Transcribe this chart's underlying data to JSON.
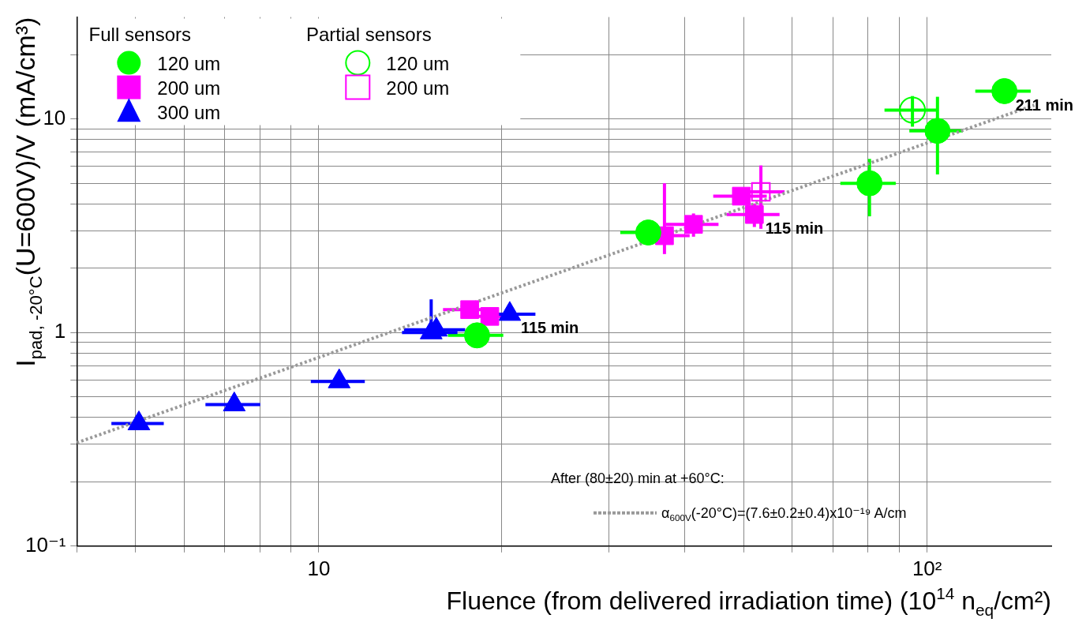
{
  "chart_data": {
    "type": "scatter",
    "xlabel": "Fluence (from delivered irradiation time) (10$^{14}$ n$_{eq}$/cm²)",
    "ylabel": "I$_{pad, -20°C}$(U=600V)/V (mA/cm³)",
    "legend_title": "After (80±20) min at +60°C:",
    "log": "xy",
    "grid": true,
    "legend": "left",
    "xlim": [
      4,
      160
    ],
    "ylim": [
      0.1,
      30
    ],
    "xticks": [
      {
        "value": 4,
        "label": null
      },
      {
        "value": 5,
        "label": null
      },
      {
        "value": 6,
        "label": null
      },
      {
        "value": 7,
        "label": null
      },
      {
        "value": 8,
        "label": null
      },
      {
        "value": 9,
        "label": null
      },
      {
        "value": 10,
        "label": "10"
      },
      {
        "value": 20,
        "label": null
      },
      {
        "value": 30,
        "label": null
      },
      {
        "value": 40,
        "label": null
      },
      {
        "value": 50,
        "label": null
      },
      {
        "value": 60,
        "label": null
      },
      {
        "value": 70,
        "label": null
      },
      {
        "value": 80,
        "label": null
      },
      {
        "value": 90,
        "label": null
      },
      {
        "value": 100,
        "label": "10²"
      }
    ],
    "yticks": [
      {
        "value": 0.1,
        "label": "10⁻¹"
      },
      {
        "value": 0.2,
        "label": null
      },
      {
        "value": 0.3,
        "label": null
      },
      {
        "value": 0.4,
        "label": null
      },
      {
        "value": 0.5,
        "label": null
      },
      {
        "value": 0.6,
        "label": null
      },
      {
        "value": 0.7,
        "label": null
      },
      {
        "value": 0.8,
        "label": null
      },
      {
        "value": 0.9,
        "label": null
      },
      {
        "value": 1,
        "label": "1"
      },
      {
        "value": 2,
        "label": null
      },
      {
        "value": 3,
        "label": null
      },
      {
        "value": 4,
        "label": null
      },
      {
        "value": 5,
        "label": null
      },
      {
        "value": 6,
        "label": null
      },
      {
        "value": 7,
        "label": null
      },
      {
        "value": 8,
        "label": null
      },
      {
        "value": 9,
        "label": null
      },
      {
        "value": 10,
        "label": "10"
      },
      {
        "value": 20,
        "label": null
      }
    ],
    "series": [
      {
        "name": "120 um",
        "color": "#00ff00",
        "marker": "circle",
        "x": [
          18.2,
          34.8,
          80.4,
          104,
          134
        ],
        "values": [
          0.97,
          2.94,
          5.0,
          8.8,
          13.5
        ],
        "xerrors": [
          1.9,
          3.5,
          8.4,
          10.5,
          14
        ],
        "errors": [
          0.12,
          null,
          1.5,
          [
            5.5,
            12.7
          ],
          null
        ]
      },
      {
        "name": "200 um",
        "color": "#ff00ff",
        "marker": "square",
        "x": [
          17.7,
          19.1,
          37.0,
          41.3,
          49.5,
          52.0
        ],
        "values": [
          1.28,
          1.19,
          2.84,
          3.21,
          4.35,
          3.57
        ],
        "xerrors": [
          1.7,
          1.9,
          3.7,
          4.1,
          5,
          5.2
        ],
        "errors": [
          null,
          null,
          [
            2.33,
            5.0
          ],
          0.4,
          null,
          0.45
        ]
      },
      {
        "name": "300 um",
        "color": "#0000ff",
        "marker": "triangle",
        "x": [
          5.06,
          7.26,
          10.8,
          15.3,
          15.6,
          20.6
        ],
        "values": [
          0.375,
          0.46,
          0.59,
          1.0,
          1.03,
          1.22
        ],
        "xerrors": [
          0.5,
          0.75,
          1.1,
          1.6,
          1.8,
          2.1
        ],
        "errors": [
          null,
          null,
          null,
          [
            0.95,
            1.43
          ],
          null,
          null
        ]
      },
      {
        "name": "120 um",
        "color": "#00ff00",
        "marker": "circle",
        "x": [
          94.6
        ],
        "values": [
          11.0
        ],
        "xerrors": [
          9.5
        ],
        "errors": [
          1.8
        ]
      },
      {
        "name": "200 um",
        "color": "#ff00ff",
        "marker": "square",
        "x": [
          53.3
        ],
        "values": [
          4.56
        ],
        "xerrors": [
          5
        ],
        "errors": [
          1.5
        ]
      },
      {
        "name": "α$_{600V}$(-20°C)=(7.6±0.2±0.4)x10⁻¹⁹ A/cm",
        "type": "line",
        "color": "#999999",
        "line_style": "dotted",
        "marker": "none",
        "x": [
          4,
          150
        ],
        "values": [
          0.305,
          11.6
        ]
      }
    ],
    "annotations": [
      "Full sensors",
      "Partial sensors",
      {
        "text": "115 min",
        "x": 20.6,
        "y": 1.22
      },
      {
        "text": "115 min",
        "x": 52.0,
        "y": 3.57
      },
      {
        "text": "211 min",
        "x": 134,
        "y": 13.5
      }
    ]
  }
}
